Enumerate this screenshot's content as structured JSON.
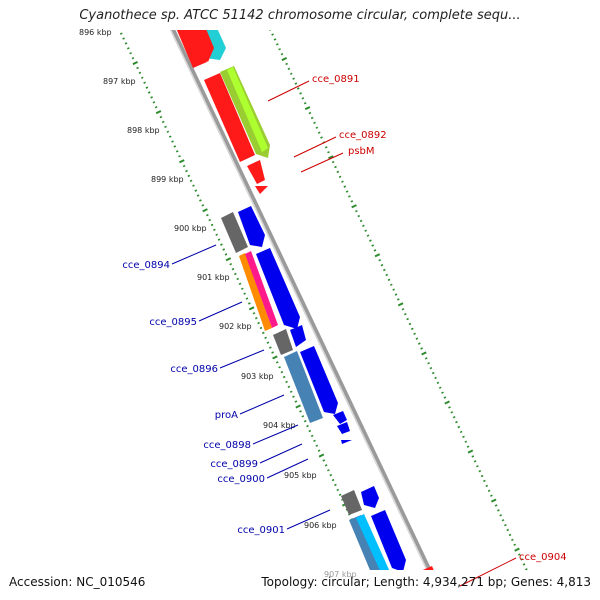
{
  "title": "Cyanothece sp. ATCC 51142 chromosome circular, complete sequ...",
  "footer": {
    "accession": "Accession: NC_010546",
    "topology": "Topology: circular; Length: 4,934,271 bp; Genes: 4,813"
  },
  "colors": {
    "backbone": "#8c8c8c",
    "ticks": "#2e8b2e",
    "label_forward": "#cc0000",
    "label_reverse": "#0000aa"
  },
  "kbp_ticks": [
    "896 kbp",
    "897 kbp",
    "898 kbp",
    "899 kbp",
    "900 kbp",
    "901 kbp",
    "902 kbp",
    "903 kbp",
    "904 kbp",
    "905 kbp",
    "906 kbp",
    "907 kbp"
  ],
  "gene_labels_forward": [
    "cce_0891",
    "cce_0892",
    "psbM",
    "cce_0904"
  ],
  "gene_labels_reverse": [
    "cce_0894",
    "cce_0895",
    "cce_0896",
    "proA",
    "cce_0898",
    "cce_0899",
    "cce_0900",
    "cce_0901"
  ]
}
